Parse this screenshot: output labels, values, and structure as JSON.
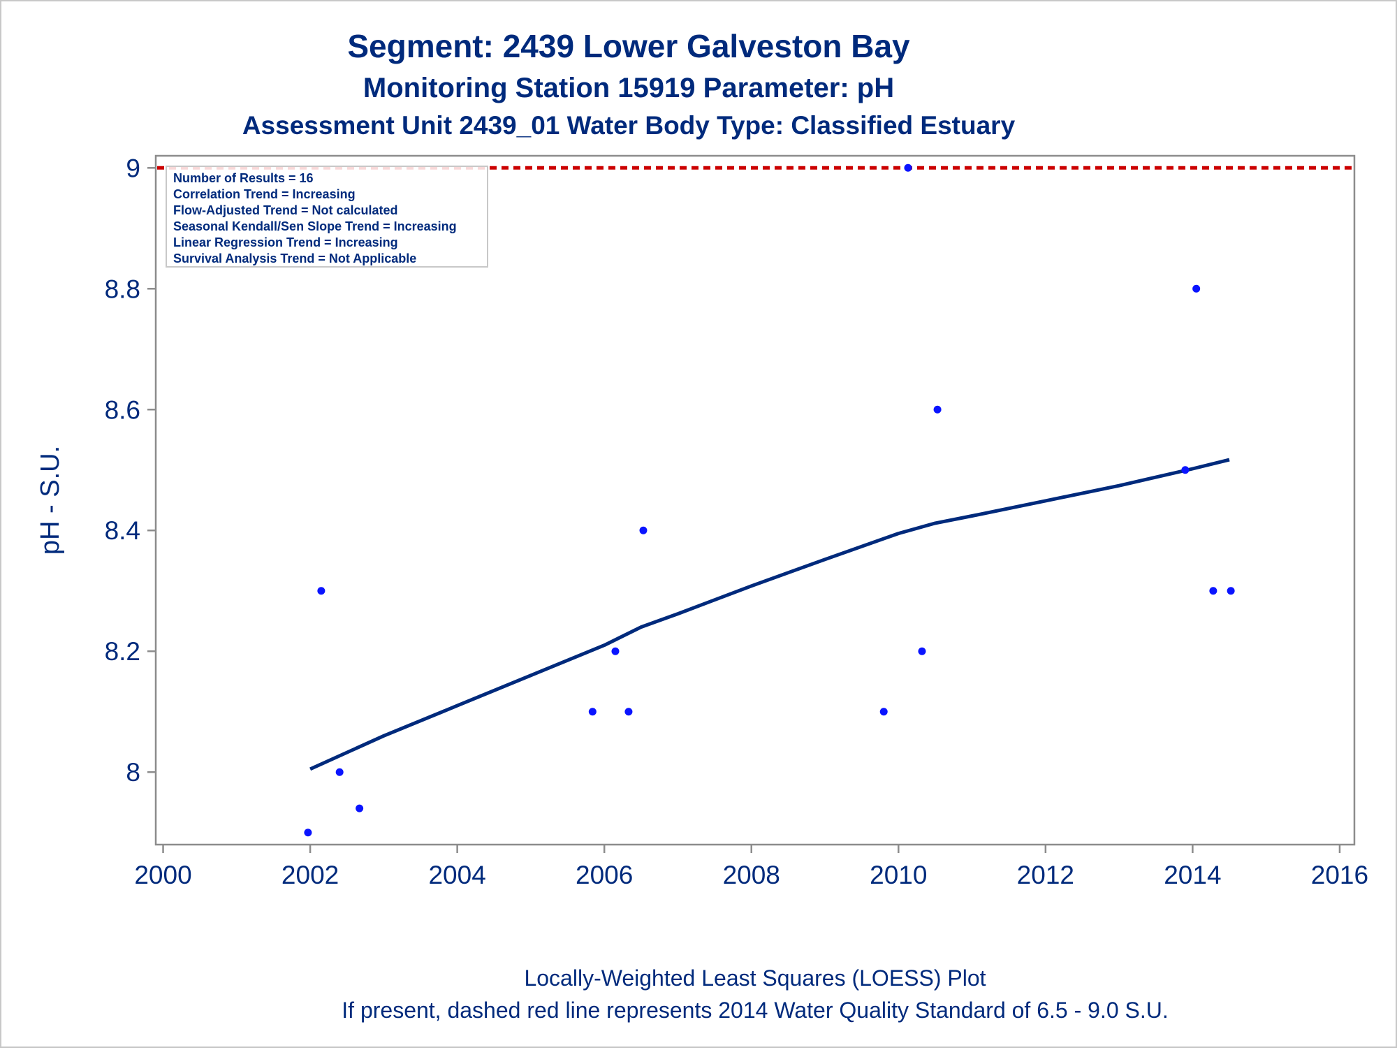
{
  "titles": {
    "line1": "Segment: 2439  Lower Galveston Bay",
    "line2": "Monitoring Station 15919 Parameter: pH",
    "line3": "Assessment Unit 2439_01   Water Body Type: Classified Estuary"
  },
  "footnotes": {
    "line1": "Locally-Weighted Least Squares (LOESS) Plot",
    "line2": "If present, dashed red line represents 2014 Water Quality Standard of 6.5 - 9.0 S.U."
  },
  "inset": {
    "lines": [
      "Number of Results = 16",
      "Correlation Trend = Increasing",
      "Flow-Adjusted Trend = Not calculated",
      "Seasonal Kendall/Sen Slope Trend = Increasing",
      "Linear Regression Trend = Increasing",
      "Survival Analysis Trend = Not Applicable"
    ]
  },
  "colors": {
    "points": "#0a14ff",
    "loess": "#002a7c",
    "standard": "#cc0000",
    "text": "#002a7c",
    "axis": "#8c8c8c"
  },
  "chart_data": {
    "type": "scatter",
    "xlabel": "",
    "ylabel": "pH - S.U.",
    "xlim": [
      1999.9,
      2016.2
    ],
    "ylim": [
      7.88,
      9.02
    ],
    "xticks": [
      2000,
      2002,
      2004,
      2006,
      2008,
      2010,
      2012,
      2014,
      2016
    ],
    "xtick_labels": [
      "2000",
      "2002",
      "2004",
      "2006",
      "2008",
      "2010",
      "2012",
      "2014",
      "2016"
    ],
    "yticks": [
      8.0,
      8.2,
      8.4,
      8.6,
      8.8,
      9.0
    ],
    "ytick_labels": [
      "8",
      "8.2",
      "8.4",
      "8.6",
      "8.8",
      "9"
    ],
    "grid": false,
    "standard_line": {
      "y": 9.0,
      "style": "dashed"
    },
    "series": [
      {
        "kind": "points",
        "x": [
          2001.97,
          2002.15,
          2002.4,
          2002.67,
          2005.84,
          2006.15,
          2006.33,
          2006.53,
          2009.8,
          2010.13,
          2010.32,
          2010.53,
          2013.9,
          2014.05,
          2014.28,
          2014.52
        ],
        "y": [
          7.9,
          8.3,
          8.0,
          7.94,
          8.1,
          8.2,
          8.1,
          8.4,
          8.1,
          9.0,
          8.2,
          8.6,
          8.5,
          8.8,
          8.3,
          8.3
        ]
      },
      {
        "kind": "loess",
        "x": [
          2002.0,
          2003.0,
          2004.0,
          2005.0,
          2006.0,
          2006.5,
          2007.0,
          2008.0,
          2009.0,
          2010.0,
          2010.5,
          2011.0,
          2012.0,
          2013.0,
          2014.0,
          2014.5
        ],
        "y": [
          8.005,
          8.06,
          8.11,
          8.16,
          8.21,
          8.24,
          8.262,
          8.308,
          8.352,
          8.395,
          8.412,
          8.424,
          8.449,
          8.474,
          8.502,
          8.517
        ]
      }
    ]
  }
}
